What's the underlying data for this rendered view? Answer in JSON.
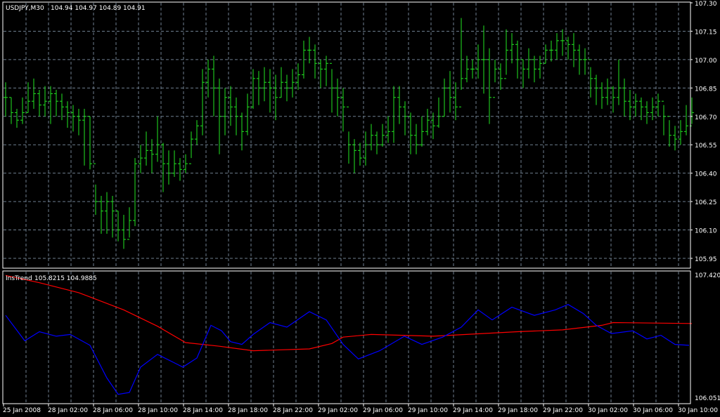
{
  "window": {
    "header": {
      "symbol": "USDJPY,M30",
      "ohlc": "104.94 104.97 104.89 104.91"
    },
    "indicator_header": {
      "name": "InsTrend",
      "values": "105.8215 104.9885"
    }
  },
  "colors": {
    "background": "#000000",
    "grid": "#6e7e8e",
    "bars": "#22e622",
    "frame": "#ffffff",
    "indicator_red": "#ff0000",
    "indicator_blue": "#0000ff"
  },
  "chart_data": [
    {
      "type": "ohlc",
      "title": "USDJPY,M30",
      "ylim": [
        105.95,
        107.3
      ],
      "y_ticks": [
        "107.30",
        "107.15",
        "107.00",
        "106.85",
        "106.70",
        "106.55",
        "106.40",
        "106.25",
        "106.10",
        "105.95"
      ],
      "x_ticks": [
        "25 Jan 2008",
        "28 Jan 02:00",
        "28 Jan 06:00",
        "28 Jan 10:00",
        "28 Jan 14:00",
        "28 Jan 18:00",
        "28 Jan 22:00",
        "29 Jan 02:00",
        "29 Jan 06:00",
        "29 Jan 10:00",
        "29 Jan 14:00",
        "29 Jan 18:00",
        "29 Jan 22:00",
        "30 Jan 02:00",
        "30 Jan 06:00",
        "30 Jan 10:00"
      ],
      "grid": true,
      "close": [
        106.8,
        106.72,
        106.68,
        106.72,
        106.78,
        106.82,
        106.76,
        106.78,
        106.82,
        106.78,
        106.75,
        106.72,
        106.7,
        106.68,
        106.7,
        106.45,
        106.25,
        106.2,
        106.25,
        106.2,
        106.1,
        106.05,
        106.15,
        106.45,
        106.48,
        106.52,
        106.5,
        106.55,
        106.45,
        106.4,
        106.45,
        106.42,
        106.45,
        106.58,
        106.65,
        106.88,
        106.95,
        106.85,
        106.7,
        106.8,
        106.75,
        106.7,
        106.62,
        106.75,
        106.9,
        106.85,
        106.88,
        106.85,
        106.8,
        106.88,
        106.85,
        106.88,
        106.92,
        107.05,
        107.05,
        106.98,
        106.95,
        106.98,
        106.85,
        106.8,
        106.75,
        106.55,
        106.52,
        106.48,
        106.55,
        106.6,
        106.55,
        106.6,
        106.62,
        106.8,
        106.75,
        106.7,
        106.6,
        106.55,
        106.62,
        106.68,
        106.65,
        106.7,
        106.85,
        106.8,
        106.75,
        106.9,
        106.95,
        106.95,
        107.0,
        107.0,
        106.8,
        106.95,
        106.9,
        107.05,
        107.08,
        107.0,
        106.95,
        107.0,
        106.95,
        106.98,
        107.05,
        107.05,
        107.1,
        107.1,
        107.08,
        107.05,
        107.0,
        107.0,
        106.9,
        106.85,
        106.8,
        106.85,
        106.8,
        106.85,
        106.78,
        106.75,
        106.78,
        106.75,
        106.72,
        106.75,
        106.78,
        106.7,
        106.6,
        106.58,
        106.62,
        106.65,
        106.72
      ],
      "high": [
        106.88,
        106.8,
        106.74,
        106.8,
        106.88,
        106.9,
        106.84,
        106.86,
        106.86,
        106.84,
        106.82,
        106.78,
        106.76,
        106.74,
        106.74,
        106.7,
        106.34,
        106.28,
        106.3,
        106.28,
        106.2,
        106.18,
        106.22,
        106.48,
        106.55,
        106.62,
        106.58,
        106.7,
        106.56,
        106.52,
        106.52,
        106.48,
        106.5,
        106.62,
        106.68,
        106.95,
        107.0,
        107.02,
        106.9,
        106.85,
        106.86,
        106.8,
        106.72,
        106.82,
        106.95,
        106.94,
        106.96,
        106.95,
        106.92,
        106.96,
        106.92,
        106.95,
        106.98,
        107.1,
        107.12,
        107.08,
        107.0,
        107.02,
        106.95,
        106.9,
        106.85,
        106.62,
        106.58,
        106.56,
        106.62,
        106.66,
        106.62,
        106.66,
        106.7,
        106.86,
        106.86,
        106.78,
        106.72,
        106.66,
        106.7,
        106.74,
        106.72,
        106.8,
        106.9,
        106.94,
        106.88,
        107.22,
        107.02,
        107.0,
        107.08,
        107.18,
        107.06,
        107.0,
        106.98,
        107.16,
        107.14,
        107.1,
        107.0,
        107.06,
        107.02,
        107.02,
        107.08,
        107.1,
        107.14,
        107.16,
        107.12,
        107.14,
        107.08,
        107.06,
        106.96,
        106.92,
        106.88,
        106.9,
        106.86,
        107.0,
        106.9,
        106.84,
        106.82,
        106.8,
        106.78,
        106.8,
        106.82,
        106.76,
        106.68,
        106.65,
        106.68,
        106.76,
        106.8
      ],
      "low": [
        106.7,
        106.66,
        106.64,
        106.66,
        106.72,
        106.74,
        106.7,
        106.7,
        106.66,
        106.7,
        106.68,
        106.64,
        106.62,
        106.6,
        106.44,
        106.42,
        106.18,
        106.08,
        106.08,
        106.06,
        106.04,
        106.0,
        106.06,
        106.12,
        106.4,
        106.44,
        106.4,
        106.46,
        106.3,
        106.34,
        106.38,
        106.36,
        106.4,
        106.48,
        106.55,
        106.6,
        106.8,
        106.7,
        106.5,
        106.6,
        106.65,
        106.6,
        106.52,
        106.6,
        106.74,
        106.76,
        106.78,
        106.72,
        106.68,
        106.8,
        106.78,
        106.8,
        106.84,
        106.9,
        106.98,
        106.9,
        106.85,
        106.86,
        106.72,
        106.7,
        106.62,
        106.45,
        106.4,
        106.44,
        106.44,
        106.52,
        106.5,
        106.54,
        106.56,
        106.56,
        106.66,
        106.6,
        106.5,
        106.5,
        106.54,
        106.6,
        106.58,
        106.64,
        106.7,
        106.72,
        106.68,
        106.84,
        106.88,
        106.9,
        106.9,
        106.82,
        106.66,
        106.88,
        106.84,
        106.92,
        106.98,
        106.9,
        106.85,
        106.9,
        106.88,
        106.9,
        106.98,
        106.99,
        107.0,
        107.02,
        107.0,
        106.96,
        106.92,
        106.92,
        106.8,
        106.76,
        106.74,
        106.76,
        106.72,
        106.76,
        106.7,
        106.68,
        106.7,
        106.68,
        106.66,
        106.68,
        106.7,
        106.6,
        106.54,
        106.52,
        106.55,
        106.6,
        106.66
      ]
    },
    {
      "type": "line",
      "title": "InsTrend",
      "ylim": [
        106.0511,
        107.4202
      ],
      "y_ticks": [
        "107.4202",
        "106.0511"
      ],
      "x_unit": "bar index",
      "series": [
        {
          "color": "#ff0000",
          "points": [
            [
              0,
              107.41
            ],
            [
              6,
              107.33
            ],
            [
              13,
              107.22
            ],
            [
              21,
              107.03
            ],
            [
              27,
              106.85
            ],
            [
              32,
              106.67
            ],
            [
              38,
              106.63
            ],
            [
              44,
              106.58
            ],
            [
              54,
              106.6
            ],
            [
              58,
              106.66
            ],
            [
              60,
              106.73
            ],
            [
              65,
              106.76
            ],
            [
              76,
              106.74
            ],
            [
              91,
              106.79
            ],
            [
              99,
              106.81
            ],
            [
              106,
              106.86
            ],
            [
              108,
              106.89
            ],
            [
              122,
              106.88
            ]
          ]
        },
        {
          "color": "#0000ff",
          "points": [
            [
              0,
              106.97
            ],
            [
              3.4,
              106.69
            ],
            [
              6,
              106.79
            ],
            [
              9,
              106.74
            ],
            [
              11.5,
              106.76
            ],
            [
              15,
              106.64
            ],
            [
              18,
              106.28
            ],
            [
              20,
              106.1
            ],
            [
              22,
              106.12
            ],
            [
              24,
              106.4
            ],
            [
              27,
              106.54
            ],
            [
              31.5,
              106.4
            ],
            [
              34,
              106.5
            ],
            [
              36.5,
              106.86
            ],
            [
              38.4,
              106.8
            ],
            [
              40,
              106.68
            ],
            [
              42,
              106.65
            ],
            [
              44,
              106.76
            ],
            [
              47,
              106.89
            ],
            [
              50,
              106.84
            ],
            [
              54,
              107.01
            ],
            [
              57,
              106.92
            ],
            [
              60,
              106.65
            ],
            [
              62.7,
              106.49
            ],
            [
              66.5,
              106.58
            ],
            [
              70.9,
              106.74
            ],
            [
              74,
              106.65
            ],
            [
              77.7,
              106.73
            ],
            [
              81,
              106.84
            ],
            [
              84,
              107.03
            ],
            [
              86.5,
              106.92
            ],
            [
              90,
              107.06
            ],
            [
              94,
              106.97
            ],
            [
              97.7,
              107.03
            ],
            [
              100,
              107.09
            ],
            [
              102.7,
              106.99
            ],
            [
              105,
              106.86
            ],
            [
              107.7,
              106.77
            ],
            [
              111.5,
              106.8
            ],
            [
              114,
              106.71
            ],
            [
              116.5,
              106.75
            ],
            [
              119,
              106.65
            ],
            [
              121.5,
              106.64
            ]
          ]
        }
      ]
    }
  ]
}
